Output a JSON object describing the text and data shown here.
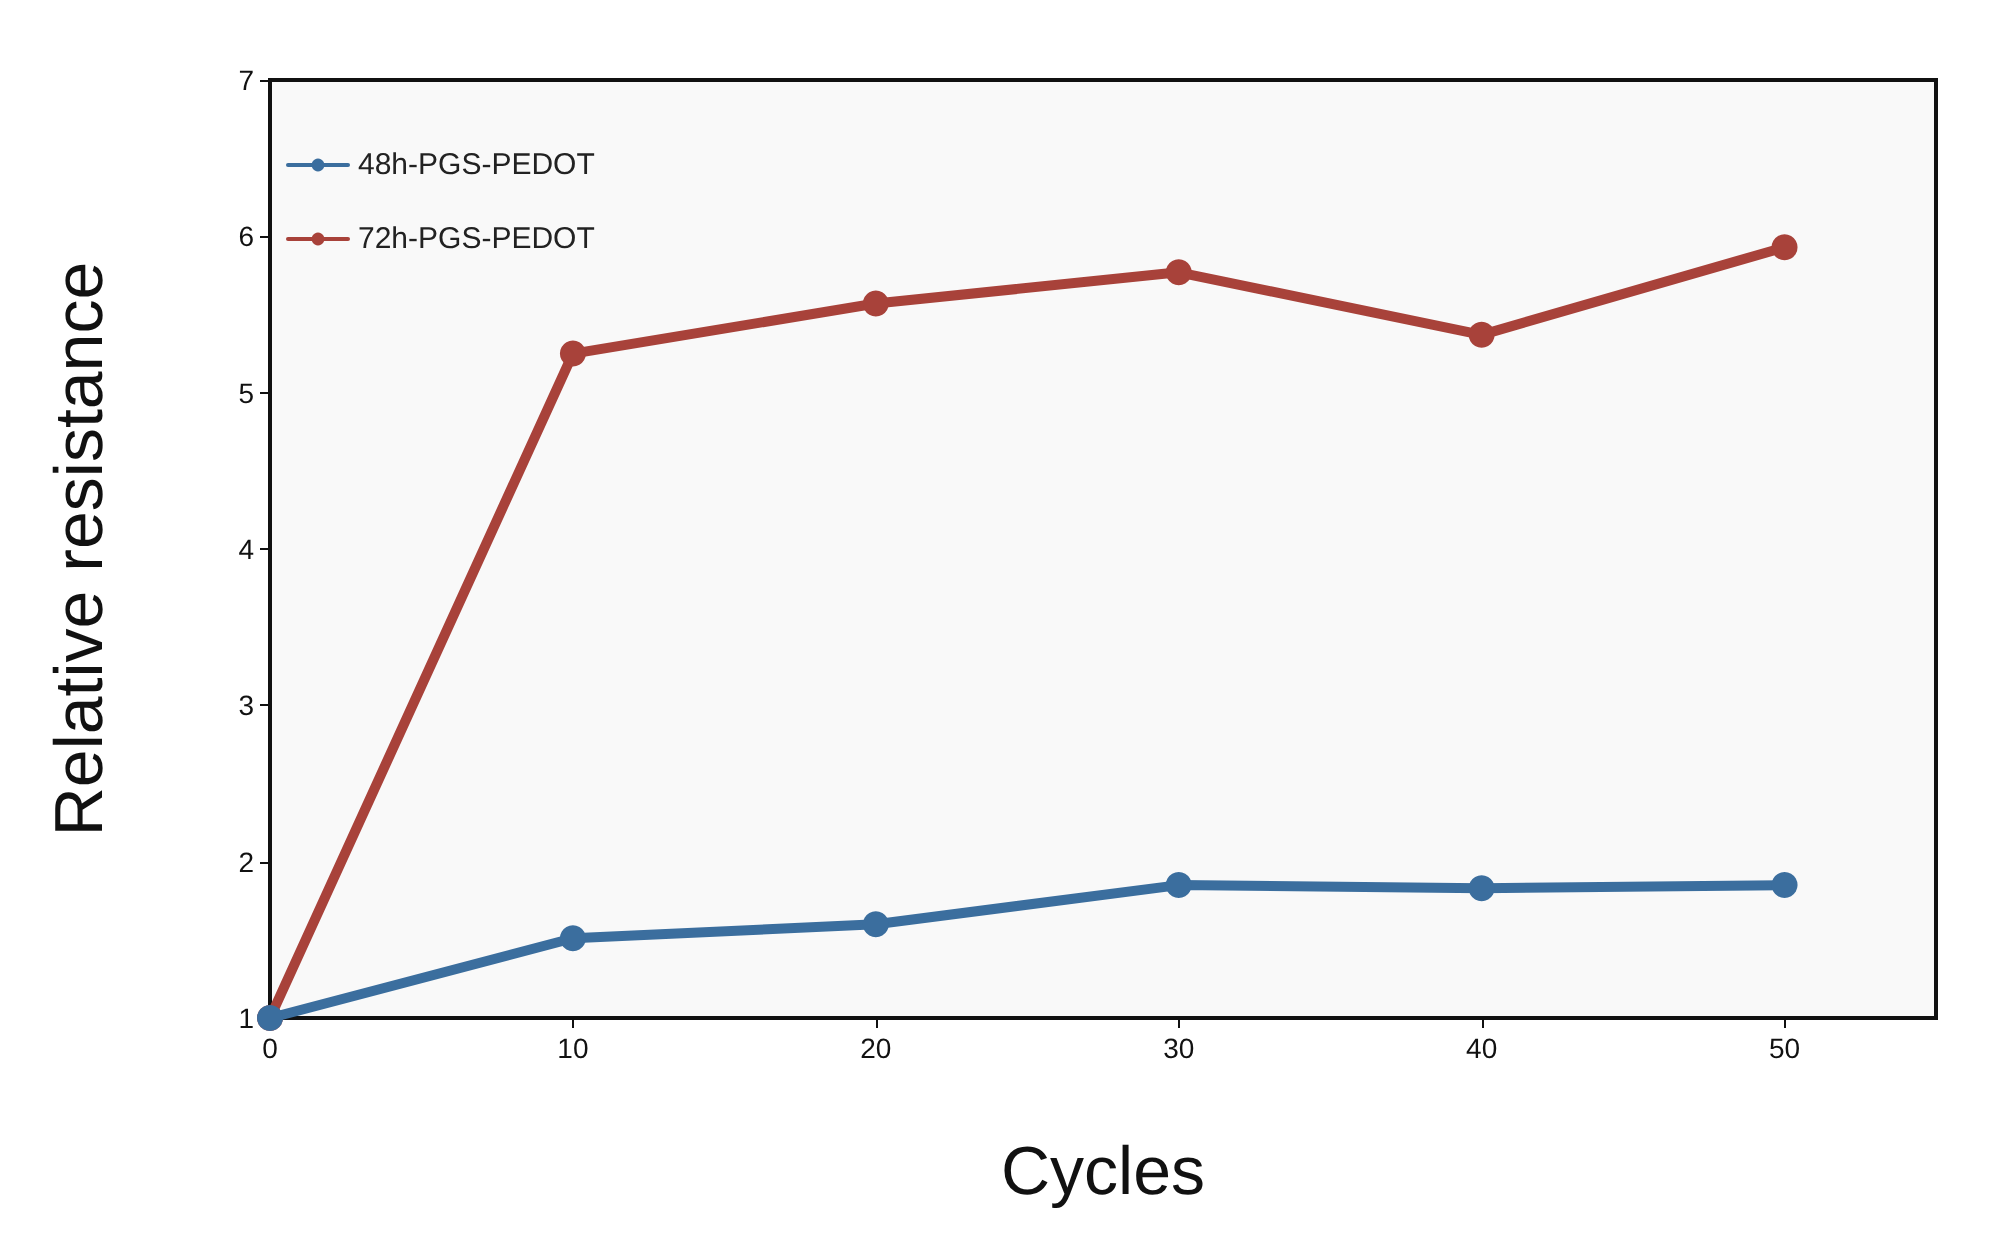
{
  "chart_data": {
    "type": "line",
    "xlabel": "Cycles",
    "ylabel": "Relative resistance",
    "x": [
      0,
      10,
      20,
      30,
      40,
      50
    ],
    "series": [
      {
        "name": "48h-PGS-PEDOT",
        "color": "#3b6e9e",
        "values": [
          1,
          1.51,
          1.6,
          1.85,
          1.83,
          1.85
        ]
      },
      {
        "name": "72h-PGS-PEDOT",
        "color": "#a8423a",
        "values": [
          1,
          5.25,
          5.57,
          5.77,
          5.37,
          5.93
        ]
      }
    ],
    "xlim": [
      0,
      55
    ],
    "xticks": [
      0,
      10,
      20,
      30,
      40,
      50
    ],
    "ylim": [
      1,
      7
    ],
    "yticks": [
      1,
      2,
      3,
      4,
      5,
      6,
      7
    ],
    "grid": false,
    "legend": "top left",
    "marker": "circle",
    "line_style": "solid"
  }
}
